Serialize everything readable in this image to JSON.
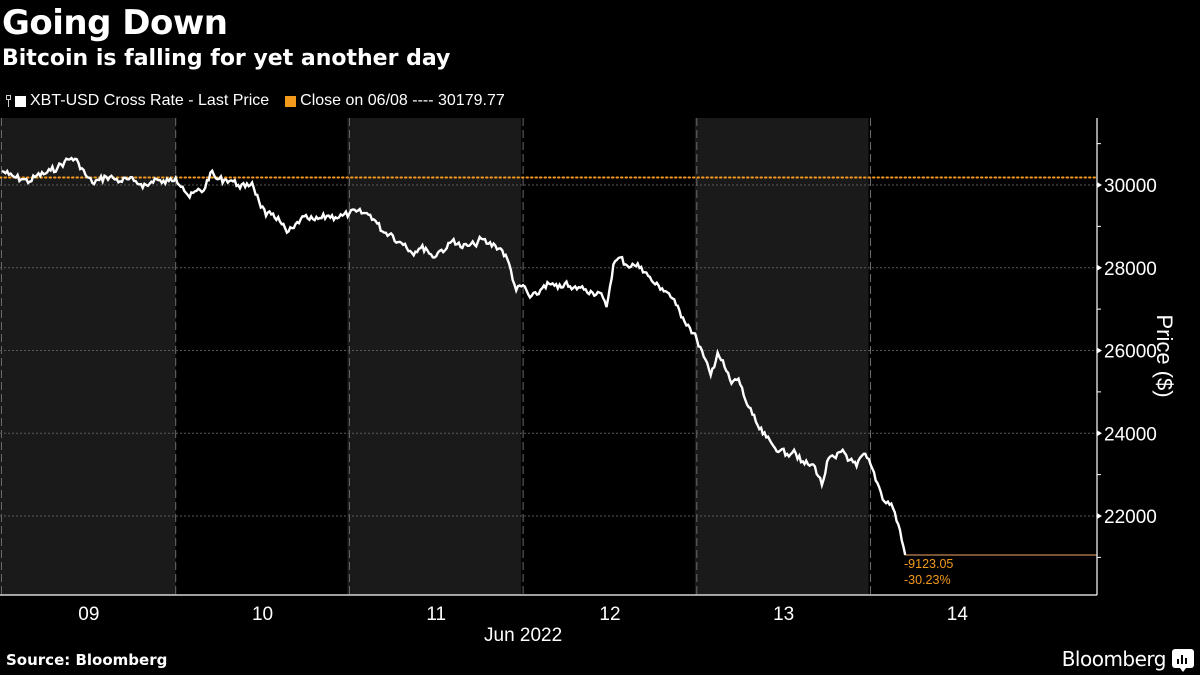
{
  "header": {
    "title": "Going Down",
    "subtitle": "Bitcoin is falling for yet another day"
  },
  "legend": [
    {
      "label": "XBT-USD Cross Rate - Last Price",
      "color": "#ffffff"
    },
    {
      "label": "Close on 06/08 ---- 30179.77",
      "color": "#f39a1c"
    }
  ],
  "footer": {
    "source": "Source: Bloomberg",
    "brand": "Bloomberg"
  },
  "annotations": {
    "change_abs": "-9123.05",
    "change_pct": "-30.23%",
    "color": "#f39a1c"
  },
  "chart_data": {
    "type": "line",
    "title": "Going Down",
    "subtitle": "Bitcoin is falling for yet another day",
    "xlabel": "Jun 2022",
    "ylabel": "Price ($)",
    "x_tick_labels": [
      "09",
      "10",
      "11",
      "12",
      "13",
      "14"
    ],
    "y_ticks": [
      22000,
      24000,
      26000,
      28000,
      30000
    ],
    "ylim": [
      20100,
      31600
    ],
    "xlim_days": [
      0,
      6.0
    ],
    "grid": {
      "horizontal": "dotted",
      "vertical_day_separators": "dashed",
      "alternating_day_shading": true
    },
    "legend_position": "top-left",
    "reference_line": {
      "name": "Close on 06/08",
      "value": 30179.77,
      "style": "dotted",
      "color": "#f39a1c"
    },
    "final_value": 21056.72,
    "change_abs": -9123.05,
    "change_pct": -30.23,
    "series": [
      {
        "name": "XBT-USD Cross Rate - Last Price",
        "color": "#ffffff",
        "x_days_from_jun09": [
          0.0,
          0.04,
          0.08,
          0.12,
          0.16,
          0.2,
          0.24,
          0.28,
          0.32,
          0.36,
          0.4,
          0.44,
          0.48,
          0.52,
          0.56,
          0.6,
          0.64,
          0.68,
          0.72,
          0.76,
          0.8,
          0.84,
          0.88,
          0.92,
          0.96,
          1.0,
          1.04,
          1.08,
          1.12,
          1.16,
          1.2,
          1.24,
          1.28,
          1.32,
          1.36,
          1.4,
          1.44,
          1.48,
          1.52,
          1.56,
          1.6,
          1.64,
          1.68,
          1.72,
          1.76,
          1.8,
          1.84,
          1.88,
          1.92,
          1.96,
          2.0,
          2.04,
          2.08,
          2.12,
          2.16,
          2.2,
          2.24,
          2.28,
          2.32,
          2.36,
          2.4,
          2.44,
          2.48,
          2.52,
          2.56,
          2.6,
          2.64,
          2.68,
          2.72,
          2.76,
          2.8,
          2.84,
          2.88,
          2.92,
          2.96,
          3.0,
          3.04,
          3.08,
          3.12,
          3.16,
          3.2,
          3.24,
          3.28,
          3.32,
          3.36,
          3.4,
          3.44,
          3.48,
          3.52,
          3.56,
          3.6,
          3.64,
          3.68,
          3.72,
          3.76,
          3.8,
          3.84,
          3.88,
          3.92,
          3.96,
          4.0,
          4.04,
          4.08,
          4.12,
          4.16,
          4.2,
          4.24,
          4.28,
          4.32,
          4.36,
          4.4,
          4.44,
          4.48,
          4.52,
          4.56,
          4.6,
          4.64,
          4.68,
          4.72,
          4.76,
          4.8,
          4.84,
          4.88,
          4.92,
          4.96,
          5.0,
          5.04,
          5.08,
          5.12,
          5.16,
          5.2
        ],
        "values": [
          30340,
          30250,
          30180,
          30140,
          30080,
          30230,
          30260,
          30350,
          30420,
          30560,
          30650,
          30540,
          30250,
          30050,
          30120,
          30200,
          30170,
          30090,
          30140,
          30100,
          30020,
          29980,
          30160,
          30050,
          30100,
          30180,
          29960,
          29700,
          29860,
          29860,
          30300,
          30140,
          30130,
          30110,
          30000,
          29950,
          30060,
          29600,
          29250,
          29310,
          29120,
          28850,
          28960,
          29180,
          29190,
          29150,
          29200,
          29260,
          29220,
          29260,
          29310,
          29360,
          29320,
          29280,
          29070,
          28850,
          28830,
          28620,
          28580,
          28360,
          28460,
          28480,
          28250,
          28410,
          28470,
          28690,
          28500,
          28530,
          28560,
          28700,
          28580,
          28540,
          28420,
          28090,
          27450,
          27580,
          27280,
          27350,
          27570,
          27600,
          27500,
          27620,
          27480,
          27530,
          27480,
          27400,
          27400,
          27050,
          28080,
          28250,
          28050,
          28060,
          28020,
          27800,
          27600,
          27500,
          27380,
          27100,
          26800,
          26550,
          26270,
          25850,
          25400,
          25950,
          25600,
          25200,
          25320,
          24800,
          24450,
          24100,
          23900,
          23700,
          23580,
          23500,
          23600,
          23300,
          23250,
          23200,
          22750,
          23400,
          23400,
          23600,
          23350,
          23200,
          23500,
          23250,
          22800,
          22350,
          22300,
          21800,
          21057
        ]
      }
    ]
  }
}
